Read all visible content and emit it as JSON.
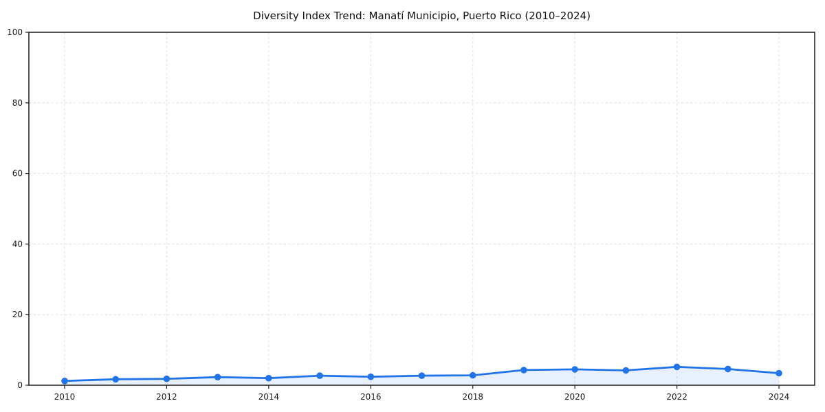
{
  "chart_data": {
    "type": "area",
    "title": "Diversity Index Trend: Manatí Municipio, Puerto Rico (2010–2024)",
    "x": [
      2010,
      2011,
      2012,
      2013,
      2014,
      2015,
      2016,
      2017,
      2018,
      2019,
      2020,
      2021,
      2022,
      2023,
      2024
    ],
    "series": [
      {
        "name": "Diversity Index",
        "values": [
          1.2,
          1.7,
          1.8,
          2.3,
          2.0,
          2.7,
          2.4,
          2.7,
          2.8,
          4.3,
          4.5,
          4.2,
          5.2,
          4.6,
          3.4
        ]
      }
    ],
    "xlabel": "",
    "ylabel": "",
    "ylim": [
      0,
      100
    ],
    "yticks": [
      0,
      20,
      40,
      60,
      80,
      100
    ],
    "xticks": [
      2010,
      2012,
      2014,
      2016,
      2018,
      2020,
      2022,
      2024
    ],
    "grid": true,
    "grid_style": "dashed",
    "legend_position": "none",
    "line_color": "#2173e8",
    "fill_color": "#2173e8",
    "fill_opacity": 0.11,
    "marker": "circle",
    "grid_color": "#e0e0e0",
    "spine_color": "#1a1a1a"
  }
}
